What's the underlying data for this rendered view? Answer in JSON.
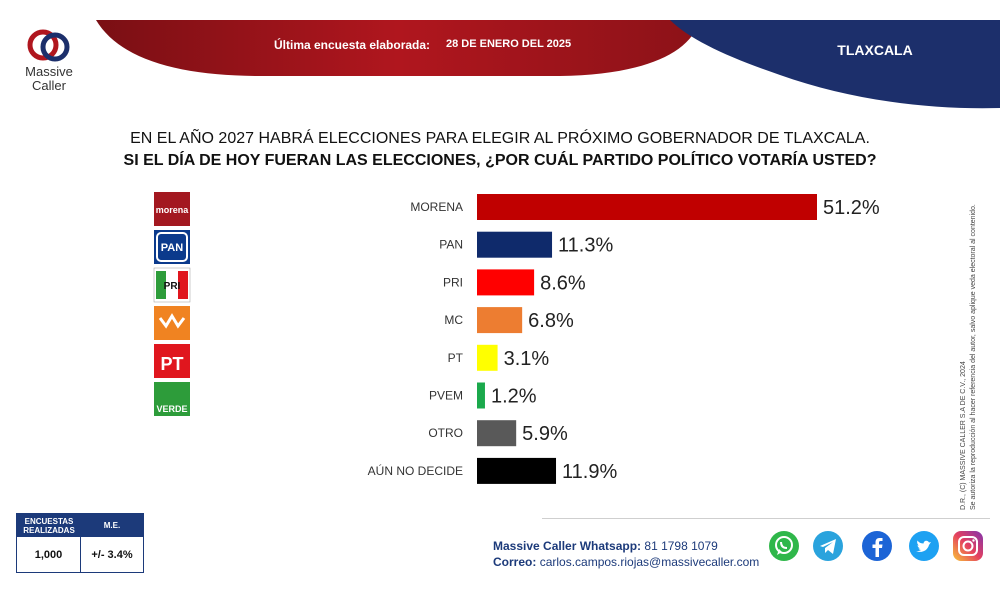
{
  "brand": {
    "line1": "Massive",
    "line2": "Caller"
  },
  "header": {
    "survey_label": "Última encuesta elaborada:",
    "survey_date": "28 DE ENERO DEL 2025",
    "state": "TLAXCALA"
  },
  "question": {
    "line1": "EN EL AÑO 2027 HABRÁ ELECCIONES PARA ELEGIR AL PRÓXIMO GOBERNADOR DE TLAXCALA.",
    "line2": "SI EL DÍA DE HOY FUERAN LAS ELECCIONES, ¿POR CUÁL PARTIDO POLÍTICO VOTARÍA USTED?"
  },
  "party_logos": [
    {
      "icon": "morena-logo-icon",
      "text": "morena",
      "color": "#a31820"
    },
    {
      "icon": "pan-logo-icon",
      "text": "PAN",
      "color": "#0b3a8c"
    },
    {
      "icon": "pri-logo-icon",
      "text": "PRI",
      "color": "#e0161e"
    },
    {
      "icon": "mc-logo-icon",
      "text": "",
      "color": "#f08321"
    },
    {
      "icon": "pt-logo-icon",
      "text": "PT",
      "color": "#e0161e"
    },
    {
      "icon": "pvem-logo-icon",
      "text": "VERDE",
      "color": "#2d9c3a"
    }
  ],
  "chart_data": {
    "type": "bar",
    "orientation": "horizontal",
    "categories": [
      "MORENA",
      "PAN",
      "PRI",
      "MC",
      "PT",
      "PVEM",
      "OTRO",
      "AÚN NO DECIDE"
    ],
    "values": [
      51.2,
      11.3,
      8.6,
      6.8,
      3.1,
      1.2,
      5.9,
      11.9
    ],
    "value_labels": [
      "51.2%",
      "11.3%",
      "8.6%",
      "6.8%",
      "3.1%",
      "1.2%",
      "5.9%",
      "11.9%"
    ],
    "colors": [
      "#c00000",
      "#0f2a6b",
      "#ff0000",
      "#ed7d31",
      "#ffff00",
      "#1ba94c",
      "#595959",
      "#000000"
    ],
    "xlim": [
      0,
      60
    ],
    "grid": false,
    "legend": "none"
  },
  "legal": {
    "line1": "D.R., (C) MASSIVE CALLER S.A DE C.V., 2024",
    "line2": "Se autoriza la reproducción al hacer referencia del autor, salvo aplique veda electoral al contenido."
  },
  "stats": {
    "col1_header_line1": "ENCUESTAS",
    "col1_header_line2": "REALIZADAS",
    "col2_header": "M.E.",
    "col1_value": "1,000",
    "col2_value": "+/- 3.4%"
  },
  "contact": {
    "whatsapp_label": "Massive Caller Whatsapp:",
    "whatsapp_number": "81 1798 1079",
    "email_label": "Correo:",
    "email": "carlos.campos.riojas@massivecaller.com"
  },
  "social": [
    {
      "icon": "whatsapp-icon",
      "color": "#2fb74a"
    },
    {
      "icon": "telegram-icon",
      "color": "#2aa3dd"
    },
    {
      "icon": "facebook-icon",
      "color": "#1c64d6"
    },
    {
      "icon": "twitter-icon",
      "color": "#1da1f2"
    },
    {
      "icon": "instagram-icon",
      "color": "#c13584"
    }
  ],
  "theme": {
    "red": "#b0161e",
    "navy": "#1c2f6b"
  }
}
